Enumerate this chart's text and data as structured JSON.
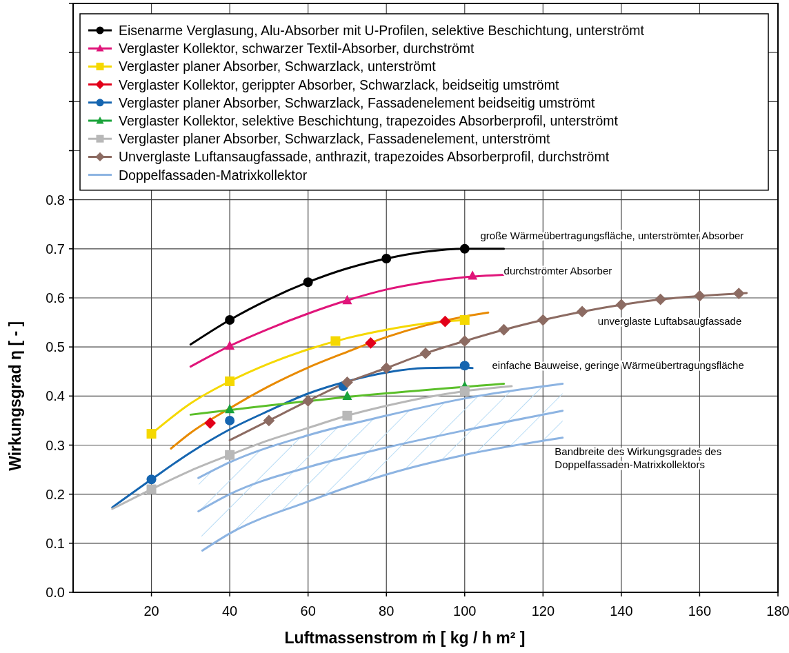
{
  "chart_data": {
    "type": "line",
    "xlabel": "Luftmassenstrom ṁ  [ kg / h m² ]",
    "ylabel": "Wirkungsgrad η  [ - ]",
    "xlim": [
      0,
      180
    ],
    "xticks": [
      20,
      40,
      60,
      80,
      100,
      120,
      140,
      160,
      180
    ],
    "ylim": [
      0,
      1.2
    ],
    "yticks": [
      {
        "value": 0,
        "label": "0.0"
      },
      {
        "value": 0.1,
        "label": "0.1"
      },
      {
        "value": 0.2,
        "label": "0.2"
      },
      {
        "value": 0.3,
        "label": "0.3"
      },
      {
        "value": 0.4,
        "label": "0.4"
      },
      {
        "value": 0.5,
        "label": "0.5"
      },
      {
        "value": 0.6,
        "label": "0.6"
      },
      {
        "value": 0.7,
        "label": "0.7"
      },
      {
        "value": 0.8,
        "label": "0.8"
      },
      {
        "value": 0.9,
        "label": null
      },
      {
        "value": 1.0,
        "label": null
      },
      {
        "value": 1.1,
        "label": null
      },
      {
        "value": 1.2,
        "label": null
      }
    ],
    "grid": true,
    "legend": "top",
    "series": [
      {
        "name": "Eisenarme Verglasung, Alu-Absorber mit U-Profilen, selektive Beschichtung, unterströmt",
        "type": "scatter",
        "marker": "circle",
        "color": "#000000",
        "x": [
          40,
          60,
          80,
          100
        ],
        "values": [
          0.555,
          0.632,
          0.68,
          0.7
        ]
      },
      {
        "name": "Verglaster Kollektor, schwarzer Textil-Absorber, durchströmt",
        "type": "scatter",
        "marker": "triangle",
        "color": "#e0157a",
        "x": [
          40,
          70,
          102
        ],
        "values": [
          0.502,
          0.595,
          0.645
        ]
      },
      {
        "name": "Verglaster planer Absorber, Schwarzlack, unterströmt",
        "type": "scatter",
        "marker": "square",
        "color": "#f5d800",
        "x": [
          20,
          40,
          67,
          100
        ],
        "values": [
          0.323,
          0.43,
          0.512,
          0.555
        ]
      },
      {
        "name": "Verglaster Kollektor, gerippter Absorber, Schwarzlack, beidseitig umströmt",
        "type": "scatter",
        "marker": "diamond",
        "color": "#e2001a",
        "x": [
          35,
          76,
          95
        ],
        "values": [
          0.345,
          0.508,
          0.552
        ]
      },
      {
        "name": "Verglaster planer Absorber, Schwarzlack, Fassadenelement beidseitig umströmt",
        "type": "scatter",
        "marker": "circle",
        "color": "#1565b0",
        "x": [
          20,
          40,
          69,
          100
        ],
        "values": [
          0.23,
          0.35,
          0.42,
          0.462
        ]
      },
      {
        "name": "Verglaster Kollektor, selektive Beschichtung, trapezoides Absorberprofil, unterströmt",
        "type": "scatter",
        "marker": "triangle",
        "color": "#1aa33a",
        "x": [
          40,
          70,
          100
        ],
        "values": [
          0.373,
          0.4,
          0.42
        ]
      },
      {
        "name": "Verglaster planer Absorber, Schwarzlack, Fassadenelement, unterströmt",
        "type": "scatter",
        "marker": "square",
        "color": "#b8b8b8",
        "x": [
          20,
          40,
          70,
          100
        ],
        "values": [
          0.21,
          0.28,
          0.36,
          0.41
        ]
      },
      {
        "name": "Unverglaste Luftansaugfassade, anthrazit, trapezoides Absorberprofil, durchströmt",
        "type": "scatter",
        "marker": "diamond",
        "color": "#8c6b62",
        "x": [
          50,
          60,
          70,
          80,
          90,
          100,
          110,
          120,
          130,
          140,
          150,
          160,
          170
        ],
        "values": [
          0.35,
          0.39,
          0.428,
          0.457,
          0.487,
          0.512,
          0.535,
          0.555,
          0.572,
          0.586,
          0.597,
          0.604,
          0.609
        ]
      },
      {
        "name": "Doppelfassaden-Matrixkollektor",
        "type": "line",
        "color": "#8db4e2",
        "x": [
          32,
          40,
          60,
          80,
          100,
          125
        ],
        "values": [
          0.233,
          0.265,
          0.32,
          0.36,
          0.395,
          0.425
        ]
      },
      {
        "type": "line",
        "color": "#8db4e2",
        "x": [
          32,
          40,
          60,
          80,
          100,
          125
        ],
        "values": [
          0.165,
          0.2,
          0.255,
          0.295,
          0.33,
          0.37
        ]
      },
      {
        "type": "line",
        "color": "#8db4e2",
        "x": [
          33,
          40,
          60,
          80,
          100,
          125
        ],
        "values": [
          0.085,
          0.12,
          0.185,
          0.24,
          0.28,
          0.315
        ]
      },
      {
        "type": "line",
        "color": "#000000",
        "x": [
          30,
          40,
          50,
          60,
          70,
          80,
          90,
          100,
          110
        ],
        "values": [
          0.505,
          0.555,
          0.597,
          0.632,
          0.66,
          0.68,
          0.694,
          0.7,
          0.7
        ]
      },
      {
        "type": "line",
        "color": "#e0157a",
        "x": [
          30,
          40,
          50,
          60,
          70,
          80,
          90,
          100,
          110
        ],
        "values": [
          0.46,
          0.502,
          0.537,
          0.568,
          0.595,
          0.617,
          0.632,
          0.642,
          0.647
        ]
      },
      {
        "type": "line",
        "color": "#f5d800",
        "x": [
          20,
          30,
          40,
          50,
          60,
          70,
          80,
          90,
          100
        ],
        "values": [
          0.323,
          0.385,
          0.43,
          0.466,
          0.495,
          0.518,
          0.535,
          0.548,
          0.555
        ]
      },
      {
        "type": "line",
        "color": "#e88a00",
        "x": [
          25,
          30,
          40,
          50,
          60,
          70,
          80,
          90,
          100,
          106
        ],
        "values": [
          0.293,
          0.325,
          0.375,
          0.42,
          0.458,
          0.49,
          0.52,
          0.544,
          0.562,
          0.57
        ]
      },
      {
        "type": "line",
        "color": "#1565b0",
        "x": [
          10,
          20,
          30,
          40,
          50,
          60,
          70,
          80,
          90,
          100,
          102
        ],
        "values": [
          0.173,
          0.23,
          0.285,
          0.332,
          0.37,
          0.405,
          0.43,
          0.448,
          0.457,
          0.458,
          0.457
        ]
      },
      {
        "type": "line",
        "color": "#5bbf2a",
        "x": [
          30,
          70,
          110
        ],
        "values": [
          0.362,
          0.398,
          0.425
        ]
      },
      {
        "type": "line",
        "color": "#b8b8b8",
        "x": [
          10,
          20,
          30,
          40,
          50,
          60,
          70,
          80,
          90,
          100,
          112
        ],
        "values": [
          0.17,
          0.21,
          0.248,
          0.28,
          0.31,
          0.335,
          0.36,
          0.38,
          0.397,
          0.41,
          0.42
        ]
      },
      {
        "type": "line",
        "color": "#8c6b62",
        "x": [
          40,
          50,
          60,
          70,
          80,
          90,
          100,
          110,
          120,
          130,
          140,
          150,
          160,
          172
        ],
        "values": [
          0.31,
          0.35,
          0.39,
          0.428,
          0.457,
          0.487,
          0.512,
          0.535,
          0.555,
          0.572,
          0.586,
          0.597,
          0.604,
          0.61
        ]
      }
    ],
    "annotations": [
      "große Wärmeübertragungsfläche, unterströmter Absorber",
      "durchströmter Absorber",
      "unverglaste Luftabsaugfassade",
      "einfache Bauweise, geringe Wärmeübertragungsfläche",
      "Bandbreite des Wirkungsgrades des\nDoppelfassaden-Matrixkollektors"
    ]
  }
}
